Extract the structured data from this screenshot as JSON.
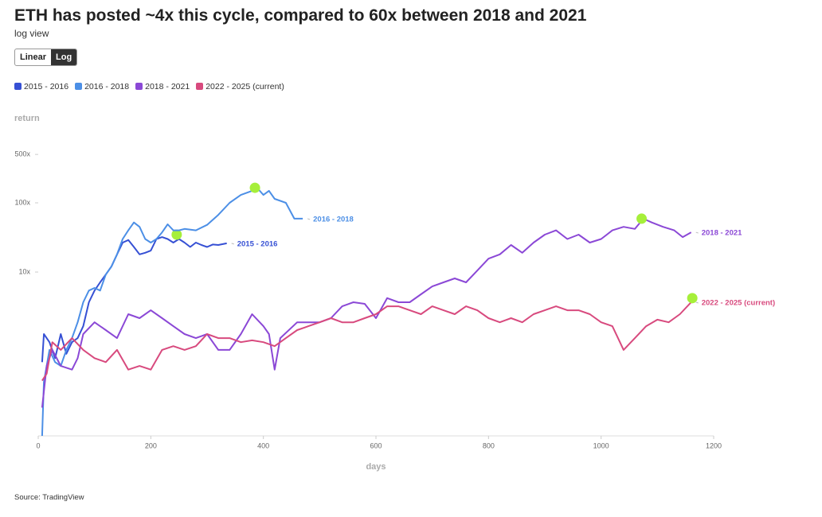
{
  "chart_data": {
    "type": "line",
    "title": "ETH has posted ~4x this cycle, compared to 60x between 2018 and 2021",
    "subtitle": "log view",
    "toggle": [
      "Linear",
      "Log"
    ],
    "toggle_active": "Log",
    "y_label": "return",
    "x_label": "days",
    "source": "Source: TradingView",
    "log_scale": true,
    "xlim": [
      0,
      1200
    ],
    "xticks": [
      0,
      200,
      400,
      600,
      800,
      1000,
      1200
    ],
    "ylim": [
      0.043,
      830
    ],
    "yticks": [
      {
        "value": 10,
        "label": "10x"
      },
      {
        "value": 100,
        "label": "100x"
      },
      {
        "value": 500,
        "label": "500x"
      }
    ],
    "highlight_color": "#a6ef3a",
    "series": [
      {
        "name": "2015 - 2016",
        "color": "#3650d4",
        "x": [
          7,
          10,
          20,
          30,
          40,
          50,
          60,
          70,
          80,
          90,
          100,
          110,
          120,
          130,
          140,
          150,
          160,
          170,
          180,
          190,
          200,
          210,
          220,
          230,
          240,
          250,
          260,
          270,
          280,
          290,
          300,
          310,
          320,
          335
        ],
        "values": [
          0.5,
          1.27,
          0.97,
          0.57,
          1.27,
          0.66,
          0.97,
          1.11,
          1.65,
          3.66,
          5.4,
          7.1,
          9.2,
          12,
          17.9,
          26.6,
          29,
          23,
          18,
          19,
          20.4,
          30,
          32,
          30,
          26.6,
          30,
          26.6,
          23,
          26.6,
          24.6,
          23,
          25,
          24.6,
          26
        ],
        "highlight": {
          "x": 246,
          "y": 34.7
        }
      },
      {
        "name": "2016 - 2018",
        "color": "#4c8fe6",
        "x": [
          7,
          10,
          20,
          30,
          40,
          50,
          60,
          70,
          80,
          90,
          100,
          110,
          120,
          130,
          140,
          150,
          160,
          170,
          180,
          190,
          200,
          210,
          220,
          230,
          240,
          250,
          260,
          280,
          300,
          320,
          340,
          360,
          380,
          390,
          400,
          410,
          420,
          440,
          455,
          470
        ],
        "values": [
          0.043,
          0.26,
          0.75,
          0.5,
          0.44,
          0.75,
          1.11,
          1.88,
          3.66,
          5.4,
          5.9,
          5.4,
          9.2,
          12,
          18,
          30,
          40,
          52,
          45,
          30,
          26.6,
          30,
          37.5,
          49,
          40,
          40,
          42,
          40,
          48,
          67,
          100,
          130,
          149,
          161,
          130,
          149,
          114,
          100,
          59,
          59
        ],
        "highlight": {
          "x": 385,
          "y": 165
        }
      },
      {
        "name": "2018 - 2021",
        "color": "#8b48d6",
        "x": [
          7,
          15,
          25,
          40,
          60,
          70,
          80,
          100,
          120,
          140,
          160,
          180,
          200,
          220,
          240,
          260,
          280,
          300,
          320,
          340,
          360,
          380,
          400,
          410,
          420,
          430,
          460,
          480,
          500,
          520,
          540,
          560,
          580,
          600,
          620,
          640,
          660,
          680,
          700,
          720,
          740,
          760,
          780,
          800,
          820,
          840,
          860,
          880,
          900,
          920,
          940,
          960,
          980,
          1000,
          1020,
          1040,
          1060,
          1075,
          1090,
          1110,
          1130,
          1145,
          1160
        ],
        "values": [
          0.11,
          0.44,
          0.75,
          0.44,
          0.39,
          0.57,
          1.27,
          1.88,
          1.45,
          1.11,
          2.46,
          2.16,
          2.8,
          2.16,
          1.65,
          1.27,
          1.11,
          1.27,
          0.75,
          0.75,
          1.27,
          2.46,
          1.65,
          1.27,
          0.39,
          1.11,
          1.88,
          1.88,
          1.88,
          2.16,
          3.2,
          3.66,
          3.47,
          2.16,
          4.2,
          3.66,
          3.66,
          4.77,
          6.2,
          7.1,
          8.1,
          7.1,
          10.5,
          15.6,
          18,
          24.6,
          19,
          26.6,
          34.7,
          40,
          30,
          34.7,
          26.6,
          30,
          40,
          45,
          42,
          59,
          52,
          45,
          40,
          32,
          37.5
        ],
        "highlight": {
          "x": 1072,
          "y": 59
        }
      },
      {
        "name": "2022 - 2025 (current)",
        "color": "#d84a7e",
        "x": [
          7,
          15,
          25,
          40,
          60,
          80,
          100,
          120,
          140,
          160,
          180,
          200,
          220,
          240,
          260,
          280,
          300,
          320,
          340,
          360,
          380,
          400,
          420,
          440,
          460,
          480,
          500,
          520,
          540,
          560,
          580,
          600,
          620,
          640,
          660,
          680,
          700,
          720,
          740,
          760,
          780,
          800,
          820,
          840,
          860,
          880,
          900,
          920,
          940,
          960,
          980,
          1000,
          1020,
          1030,
          1040,
          1060,
          1080,
          1100,
          1120,
          1140,
          1160
        ],
        "values": [
          0.27,
          0.34,
          0.97,
          0.75,
          1.11,
          0.75,
          0.57,
          0.5,
          0.75,
          0.39,
          0.44,
          0.39,
          0.75,
          0.85,
          0.75,
          0.85,
          1.27,
          1.11,
          1.11,
          0.97,
          1.03,
          0.97,
          0.85,
          1.11,
          1.45,
          1.65,
          1.88,
          2.16,
          1.88,
          1.88,
          2.16,
          2.46,
          3.2,
          3.2,
          2.8,
          2.46,
          3.2,
          2.8,
          2.46,
          3.2,
          2.8,
          2.16,
          1.88,
          2.16,
          1.88,
          2.46,
          2.8,
          3.2,
          2.8,
          2.8,
          2.46,
          1.88,
          1.65,
          1.11,
          0.75,
          1.11,
          1.65,
          2.05,
          1.88,
          2.46,
          3.66
        ],
        "highlight": {
          "x": 1162,
          "y": 4.2
        }
      }
    ]
  }
}
